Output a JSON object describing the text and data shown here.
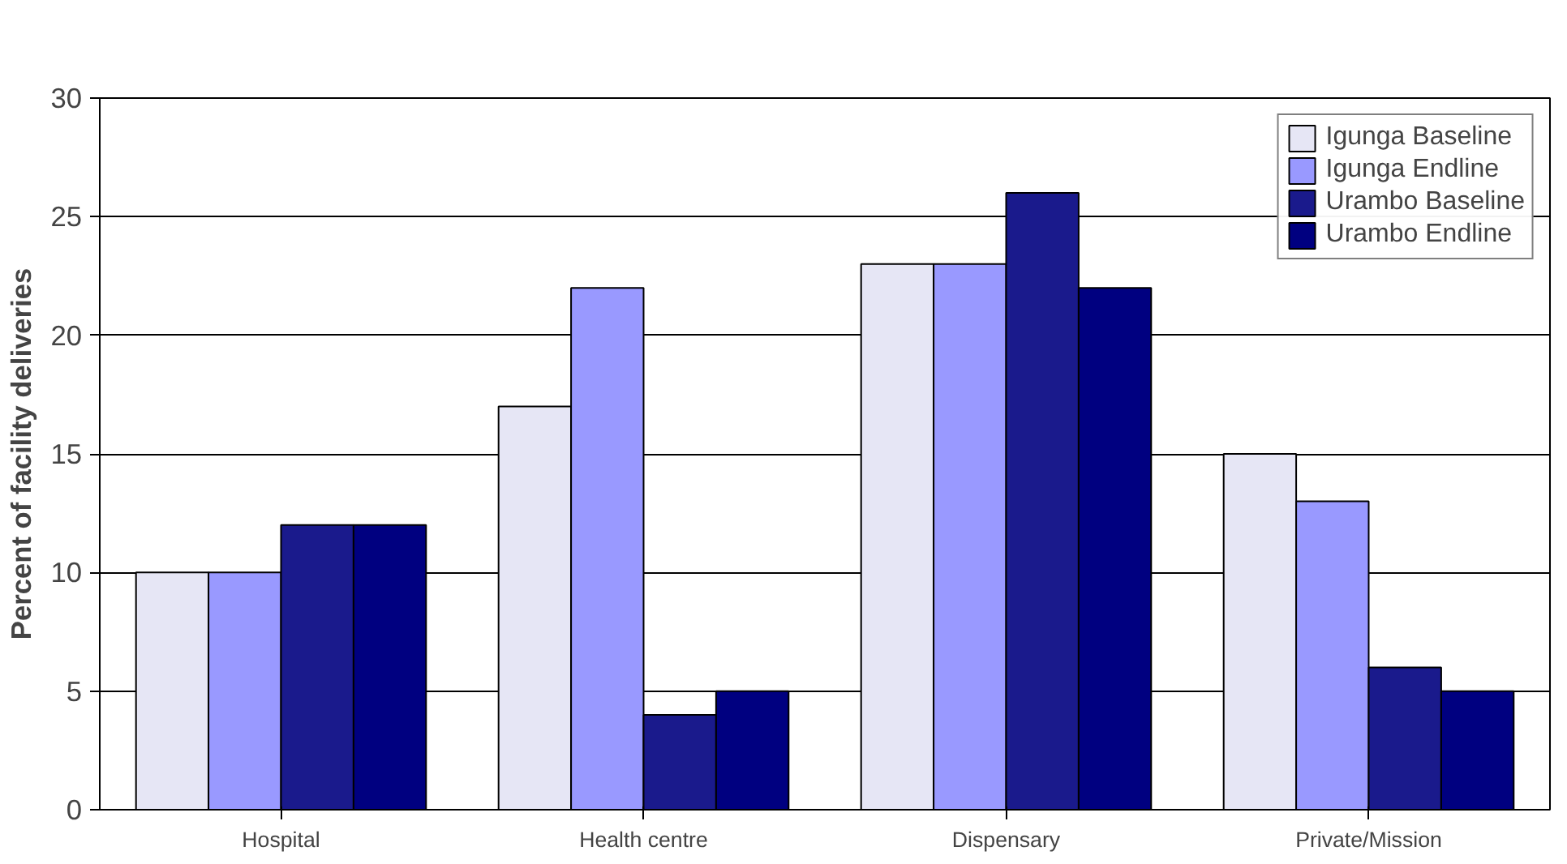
{
  "chart_data": {
    "type": "bar",
    "ylabel": "Percent of facility deliveries",
    "categories": [
      "Hospital",
      "Health centre",
      "Dispensary",
      "Private/Mission"
    ],
    "series": [
      {
        "name": "Igunga Baseline",
        "color": "#e6e6f5",
        "values": [
          10,
          17,
          23,
          15
        ]
      },
      {
        "name": "Igunga Endline",
        "color": "#9999ff",
        "values": [
          10,
          22,
          23,
          13
        ]
      },
      {
        "name": "Urambo Baseline",
        "color": "#1a1a8c",
        "values": [
          12,
          4,
          26,
          6
        ]
      },
      {
        "name": "Urambo Endline",
        "color": "#000080",
        "values": [
          12,
          5,
          22,
          5
        ]
      }
    ],
    "ylim": [
      0,
      30
    ],
    "yticks": [
      0,
      5,
      10,
      15,
      20,
      25,
      30
    ],
    "grid": "y",
    "legend": "top right"
  }
}
